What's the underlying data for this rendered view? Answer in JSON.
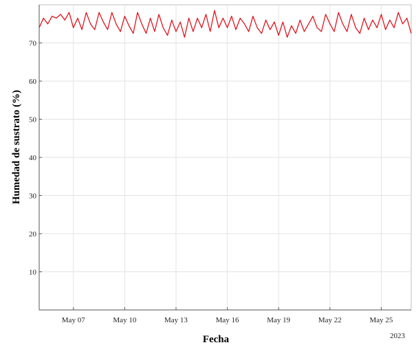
{
  "chart_data": {
    "type": "line",
    "title": "",
    "xlabel": "Fecha",
    "ylabel": "Humedad de sustrato (%)",
    "year_label": "2023",
    "x_range": [
      "2023-05-05",
      "2023-05-26T18:00"
    ],
    "ylim": [
      0,
      80
    ],
    "y_ticks": [
      10,
      20,
      30,
      40,
      50,
      60,
      70
    ],
    "x_ticks": [
      {
        "date": "2023-05-07",
        "label": "May 07"
      },
      {
        "date": "2023-05-10",
        "label": "May 10"
      },
      {
        "date": "2023-05-13",
        "label": "May 13"
      },
      {
        "date": "2023-05-16",
        "label": "May 16"
      },
      {
        "date": "2023-05-19",
        "label": "May 19"
      },
      {
        "date": "2023-05-22",
        "label": "May 22"
      },
      {
        "date": "2023-05-25",
        "label": "May 25"
      }
    ],
    "grid": true,
    "series": [
      {
        "color": "#e0141e",
        "points": [
          [
            "2023-05-05T00:00",
            74.0
          ],
          [
            "2023-05-05T06:00",
            76.5
          ],
          [
            "2023-05-05T12:00",
            75.0
          ],
          [
            "2023-05-05T18:00",
            77.0
          ],
          [
            "2023-05-06T00:00",
            76.5
          ],
          [
            "2023-05-06T06:00",
            77.5
          ],
          [
            "2023-05-06T12:00",
            76.0
          ],
          [
            "2023-05-06T18:00",
            78.0
          ],
          [
            "2023-05-07T00:00",
            74.0
          ],
          [
            "2023-05-07T06:00",
            76.5
          ],
          [
            "2023-05-07T12:00",
            73.5
          ],
          [
            "2023-05-07T18:00",
            78.0
          ],
          [
            "2023-05-08T00:00",
            75.0
          ],
          [
            "2023-05-08T06:00",
            73.5
          ],
          [
            "2023-05-08T12:00",
            78.0
          ],
          [
            "2023-05-08T18:00",
            75.5
          ],
          [
            "2023-05-09T00:00",
            73.5
          ],
          [
            "2023-05-09T06:00",
            78.0
          ],
          [
            "2023-05-09T12:00",
            75.0
          ],
          [
            "2023-05-09T18:00",
            73.0
          ],
          [
            "2023-05-10T00:00",
            77.0
          ],
          [
            "2023-05-10T06:00",
            74.5
          ],
          [
            "2023-05-10T12:00",
            72.5
          ],
          [
            "2023-05-10T18:00",
            78.0
          ],
          [
            "2023-05-11T00:00",
            75.0
          ],
          [
            "2023-05-11T06:00",
            72.5
          ],
          [
            "2023-05-11T12:00",
            76.5
          ],
          [
            "2023-05-11T18:00",
            73.0
          ],
          [
            "2023-05-12T00:00",
            77.5
          ],
          [
            "2023-05-12T06:00",
            74.0
          ],
          [
            "2023-05-12T12:00",
            72.0
          ],
          [
            "2023-05-12T18:00",
            76.0
          ],
          [
            "2023-05-13T00:00",
            73.0
          ],
          [
            "2023-05-13T06:00",
            75.5
          ],
          [
            "2023-05-13T12:00",
            71.5
          ],
          [
            "2023-05-13T18:00",
            76.5
          ],
          [
            "2023-05-14T00:00",
            73.0
          ],
          [
            "2023-05-14T06:00",
            76.5
          ],
          [
            "2023-05-14T12:00",
            74.0
          ],
          [
            "2023-05-14T18:00",
            77.5
          ],
          [
            "2023-05-15T00:00",
            73.0
          ],
          [
            "2023-05-15T06:00",
            78.5
          ],
          [
            "2023-05-15T12:00",
            74.0
          ],
          [
            "2023-05-15T18:00",
            76.5
          ],
          [
            "2023-05-16T00:00",
            74.0
          ],
          [
            "2023-05-16T06:00",
            77.0
          ],
          [
            "2023-05-16T12:00",
            73.5
          ],
          [
            "2023-05-16T18:00",
            76.5
          ],
          [
            "2023-05-17T00:00",
            75.0
          ],
          [
            "2023-05-17T06:00",
            73.0
          ],
          [
            "2023-05-17T12:00",
            77.0
          ],
          [
            "2023-05-17T18:00",
            74.0
          ],
          [
            "2023-05-18T00:00",
            72.5
          ],
          [
            "2023-05-18T06:00",
            76.0
          ],
          [
            "2023-05-18T12:00",
            73.5
          ],
          [
            "2023-05-18T18:00",
            75.5
          ],
          [
            "2023-05-19T00:00",
            72.0
          ],
          [
            "2023-05-19T06:00",
            75.5
          ],
          [
            "2023-05-19T12:00",
            71.5
          ],
          [
            "2023-05-19T18:00",
            74.5
          ],
          [
            "2023-05-20T00:00",
            72.5
          ],
          [
            "2023-05-20T06:00",
            76.0
          ],
          [
            "2023-05-20T12:00",
            73.0
          ],
          [
            "2023-05-20T18:00",
            75.0
          ],
          [
            "2023-05-21T00:00",
            77.0
          ],
          [
            "2023-05-21T06:00",
            74.0
          ],
          [
            "2023-05-21T12:00",
            73.0
          ],
          [
            "2023-05-21T18:00",
            77.5
          ],
          [
            "2023-05-22T00:00",
            75.0
          ],
          [
            "2023-05-22T06:00",
            73.0
          ],
          [
            "2023-05-22T12:00",
            78.0
          ],
          [
            "2023-05-22T18:00",
            75.0
          ],
          [
            "2023-05-23T00:00",
            73.0
          ],
          [
            "2023-05-23T06:00",
            77.5
          ],
          [
            "2023-05-23T12:00",
            74.0
          ],
          [
            "2023-05-23T18:00",
            72.5
          ],
          [
            "2023-05-24T00:00",
            76.5
          ],
          [
            "2023-05-24T06:00",
            73.5
          ],
          [
            "2023-05-24T12:00",
            76.0
          ],
          [
            "2023-05-24T18:00",
            74.0
          ],
          [
            "2023-05-25T00:00",
            77.5
          ],
          [
            "2023-05-25T06:00",
            73.5
          ],
          [
            "2023-05-25T12:00",
            76.0
          ],
          [
            "2023-05-25T18:00",
            74.0
          ],
          [
            "2023-05-26T00:00",
            78.0
          ],
          [
            "2023-05-26T06:00",
            75.0
          ],
          [
            "2023-05-26T12:00",
            76.5
          ],
          [
            "2023-05-26T18:00",
            72.5
          ]
        ]
      }
    ]
  }
}
